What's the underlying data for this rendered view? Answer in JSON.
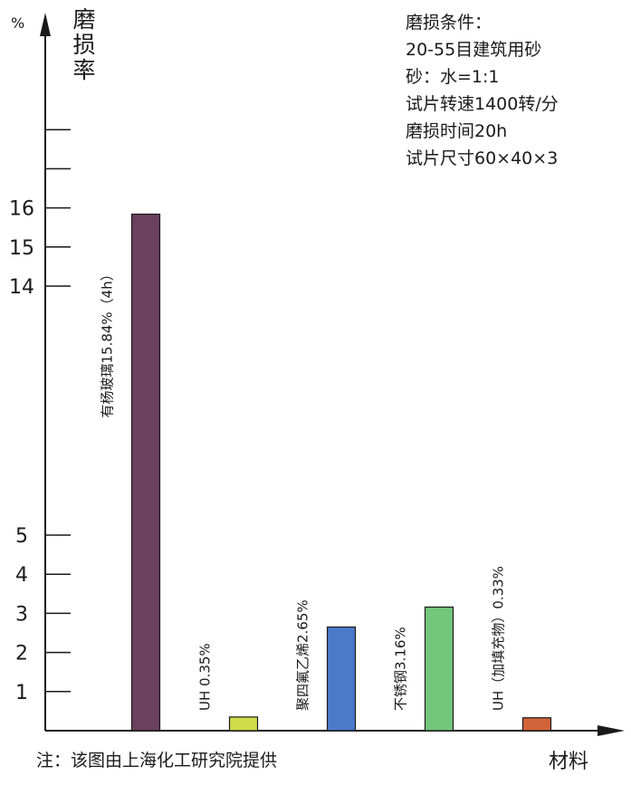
{
  "chart_data": {
    "type": "bar",
    "y_unit": "%",
    "ylabel": "磨损率",
    "xlabel": "材料",
    "categories": [
      "有杨玻璃15.84%（4h）",
      "UH 0.35%",
      "聚四氟乙烯2.65%",
      "不锈钢3.16%",
      "UH（加填充物）0.33%"
    ],
    "values": [
      15.84,
      0.35,
      2.65,
      3.16,
      0.33
    ],
    "colors": [
      "#6b3f5e",
      "#cfdc4a",
      "#4b7ac8",
      "#72c77a",
      "#d2643a"
    ],
    "y_ticks": [
      1,
      2,
      3,
      4,
      5,
      14,
      15,
      16
    ],
    "y_ticks_unlabeled_count": 2,
    "y_axis_break": "between 5 and 14",
    "grid": false
  },
  "conditions": {
    "title": "磨损条件：",
    "lines": [
      "20-55目建筑用砂",
      "砂：水=1:1",
      "试片转速1400转/分",
      "磨损时间20h",
      "试片尺寸60×40×3"
    ]
  },
  "footnote": "注：该图由上海化工研究院提供"
}
